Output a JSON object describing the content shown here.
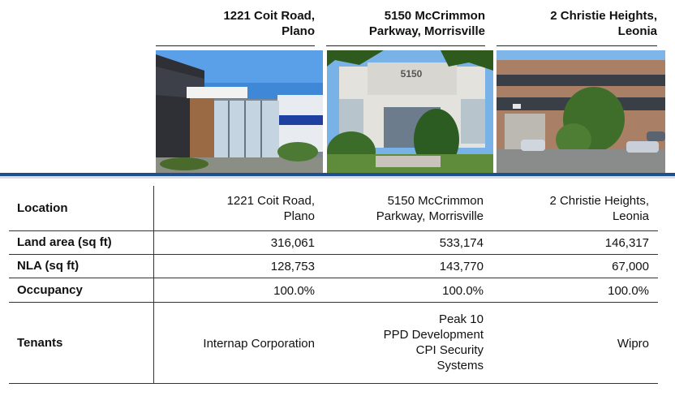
{
  "columns": [
    {
      "heading_line1": "1221 Coit Road,",
      "heading_line2": "Plano"
    },
    {
      "heading_line1": "5150 McCrimmon",
      "heading_line2": "Parkway, Morrisville"
    },
    {
      "heading_line1": "2 Christie Heights,",
      "heading_line2": "Leonia"
    }
  ],
  "photo_sign_text": "5150",
  "table": {
    "location": {
      "label": "Location",
      "values": [
        [
          "1221 Coit Road,",
          "Plano"
        ],
        [
          "5150 McCrimmon",
          "Parkway, Morrisville"
        ],
        [
          "2 Christie Heights,",
          "Leonia"
        ]
      ]
    },
    "land_area": {
      "label": "Land area (sq ft)",
      "values": [
        "316,061",
        "533,174",
        "146,317"
      ]
    },
    "nla": {
      "label": "NLA (sq ft)",
      "values": [
        "128,753",
        "143,770",
        "67,000"
      ]
    },
    "occupancy": {
      "label": "Occupancy",
      "values": [
        "100.0%",
        "100.0%",
        "100.0%"
      ]
    },
    "tenants": {
      "label": "Tenants",
      "col1": "Internap Corporation",
      "col2": [
        "Peak 10",
        "PPD Development",
        "CPI Security",
        "Systems"
      ],
      "col3": "Wipro"
    }
  },
  "colors": {
    "accent_blue": "#1d4f91",
    "rule_grey": "#d9dde3"
  }
}
